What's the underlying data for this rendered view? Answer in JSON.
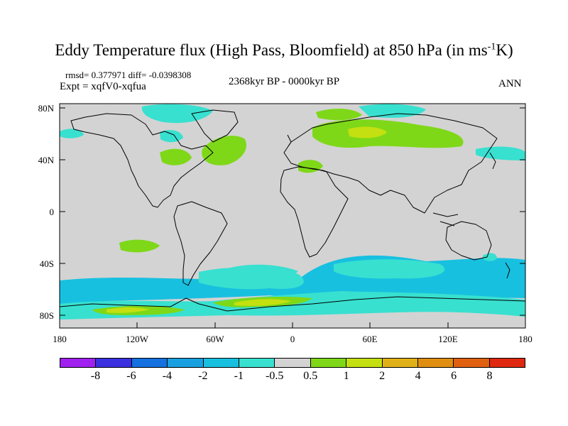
{
  "title": "Eddy Temperature flux (High Pass, Bloomfield) at 850 hPa (in ms",
  "title_sup": "-1",
  "title_end": "K)",
  "rmsd_line": "rmsd= 0.377971 diff= -0.0398308",
  "expt_line": "Expt = xqfV0-xqfua",
  "period": "2368kyr BP - 0000kyr BP",
  "season": "ANN",
  "map": {
    "lat_labels": [
      "80N",
      "40N",
      "0",
      "40S",
      "80S"
    ],
    "lon_labels": [
      "180",
      "120W",
      "60W",
      "0",
      "60E",
      "120E",
      "180"
    ],
    "background_color": "#d3d3d3"
  },
  "colorbar": {
    "colors": [
      "#a020f0",
      "#3a30e0",
      "#1570e0",
      "#18a0e0",
      "#18c0e0",
      "#38e0d0",
      "#d3d3d3",
      "#7ed818",
      "#c4e010",
      "#e0b018",
      "#e08e10",
      "#e06010",
      "#e02810"
    ],
    "labels": [
      "-8",
      "-6",
      "-4",
      "-2",
      "-1",
      "-0.5",
      "0.5",
      "1",
      "2",
      "4",
      "6",
      "8"
    ]
  }
}
